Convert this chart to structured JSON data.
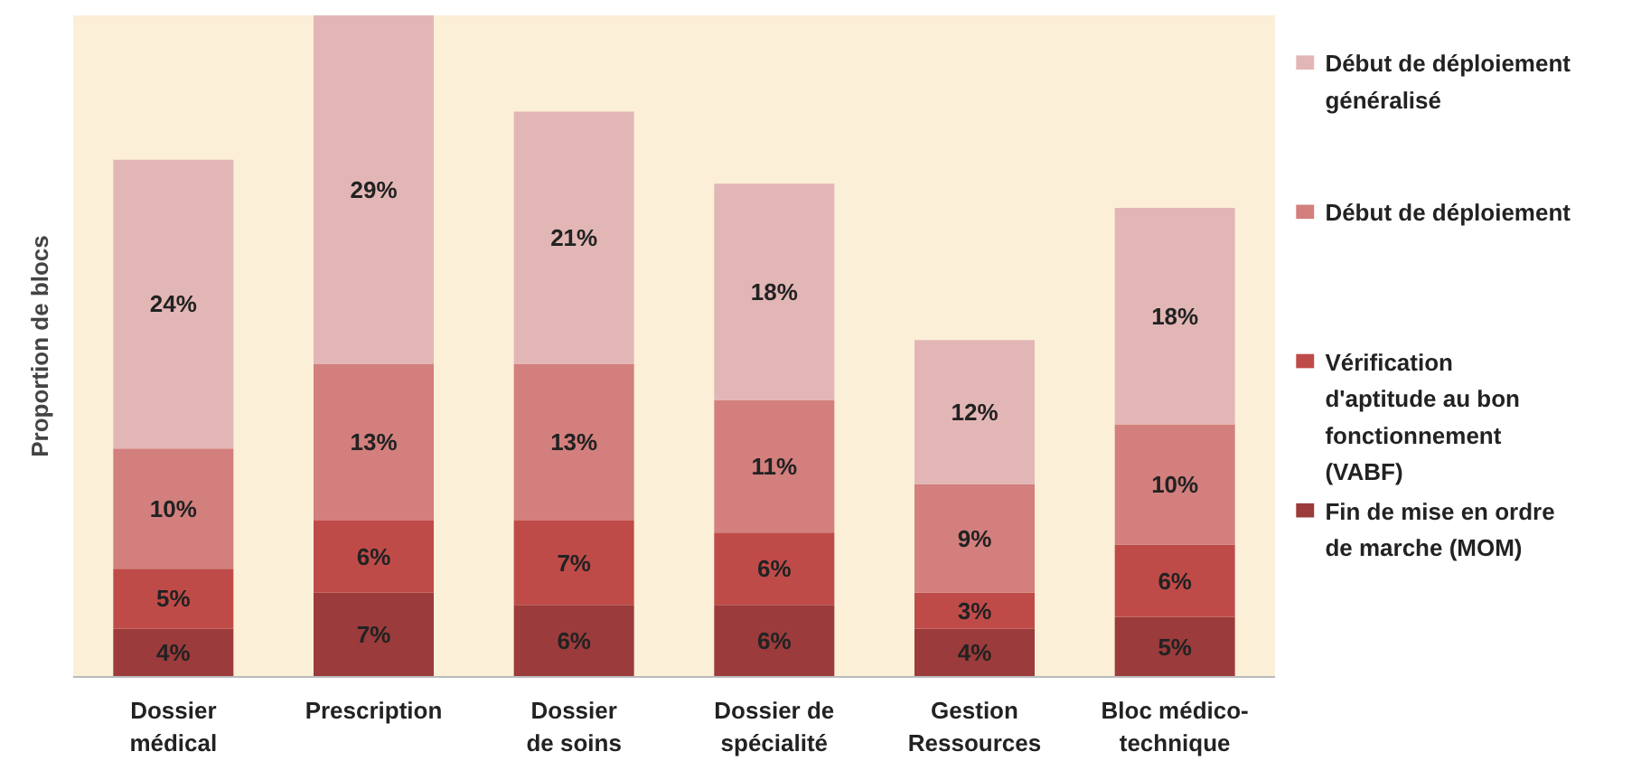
{
  "chart_data": {
    "type": "bar",
    "stacked": true,
    "ylabel": "Proportion de blocs",
    "legend": "right",
    "grid": false,
    "tick_labels": "x",
    "categories": [
      "Dossier médical",
      "Prescription",
      "Dossier de soins",
      "Dossier de spécialité",
      "Gestion Ressources",
      "Bloc médico-technique"
    ],
    "series": [
      {
        "name": "Fin de mise en ordre de marche (MOM)",
        "color": "#9b3b3b",
        "values": [
          4,
          7,
          6,
          6,
          4,
          5
        ],
        "value_labels": [
          "4%",
          "7%",
          "6%",
          "6%",
          "4%",
          "5%"
        ]
      },
      {
        "name": "Vérification d'aptitude au bon fonctionnement (VABF)",
        "color": "#bf4b49",
        "values": [
          5,
          6,
          7,
          6,
          3,
          6
        ],
        "value_labels": [
          "5%",
          "6%",
          "7%",
          "6%",
          "3%",
          "6%"
        ]
      },
      {
        "name": "Début de déploiement",
        "color": "#d27f7e",
        "values": [
          10,
          13,
          13,
          11,
          9,
          10
        ],
        "value_labels": [
          "10%",
          "13%",
          "13%",
          "11%",
          "9%",
          "10%"
        ]
      },
      {
        "name": "Début de déploiement généralisé",
        "color": "#e3b6b6",
        "values": [
          24,
          29,
          21,
          18,
          12,
          18
        ],
        "value_labels": [
          "24%",
          "29%",
          "21%",
          "18%",
          "12%",
          "18%"
        ]
      }
    ]
  }
}
